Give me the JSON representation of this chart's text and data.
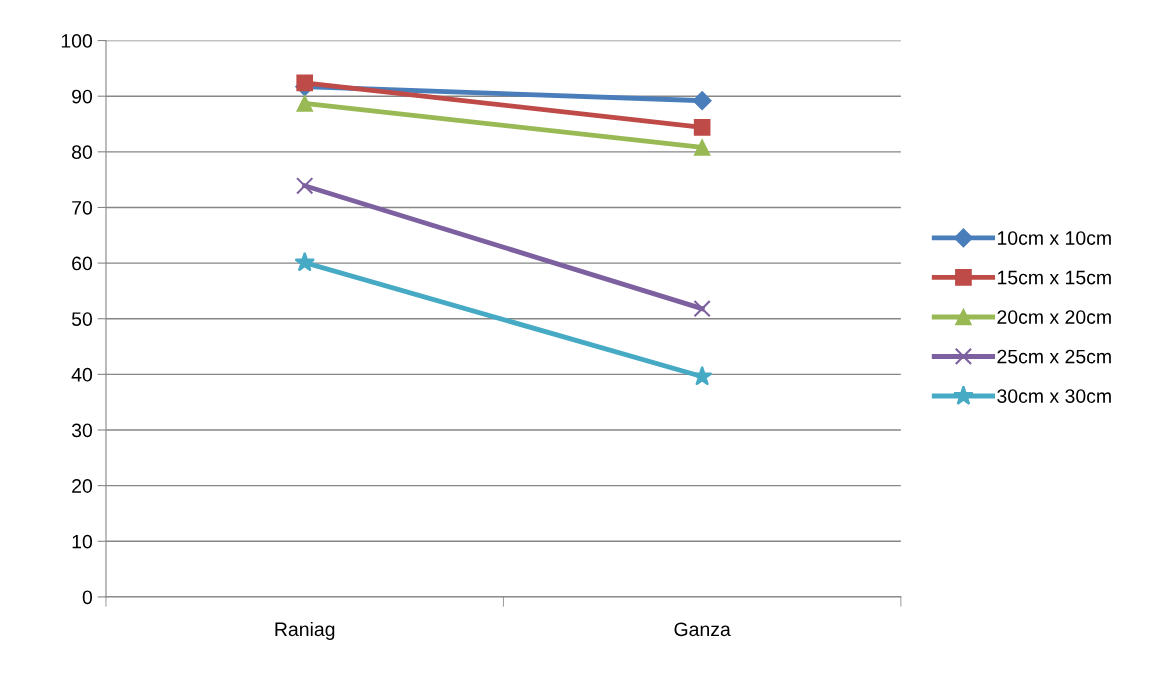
{
  "chart_data": {
    "type": "line",
    "categories": [
      "Raniag",
      "Ganza"
    ],
    "series": [
      {
        "name": "10cm x 10cm",
        "color": "#4a7ebb",
        "marker": "diamond",
        "values": [
          91.7,
          89.2
        ]
      },
      {
        "name": "15cm x 15cm",
        "color": "#be4b48",
        "marker": "square",
        "values": [
          92.4,
          84.4
        ]
      },
      {
        "name": "20cm x 20cm",
        "color": "#98b954",
        "marker": "triangle",
        "values": [
          88.7,
          80.8
        ]
      },
      {
        "name": "25cm x 25cm",
        "color": "#7d60a0",
        "marker": "cross",
        "values": [
          73.9,
          51.8
        ]
      },
      {
        "name": "30cm x 30cm",
        "color": "#46aac5",
        "marker": "star",
        "values": [
          60.1,
          39.6
        ]
      }
    ],
    "ylim": [
      0,
      100
    ],
    "yticks": [
      0,
      10,
      20,
      30,
      40,
      50,
      60,
      70,
      80,
      90,
      100
    ],
    "grid": "y",
    "legend": "right",
    "line_style": "solid"
  }
}
